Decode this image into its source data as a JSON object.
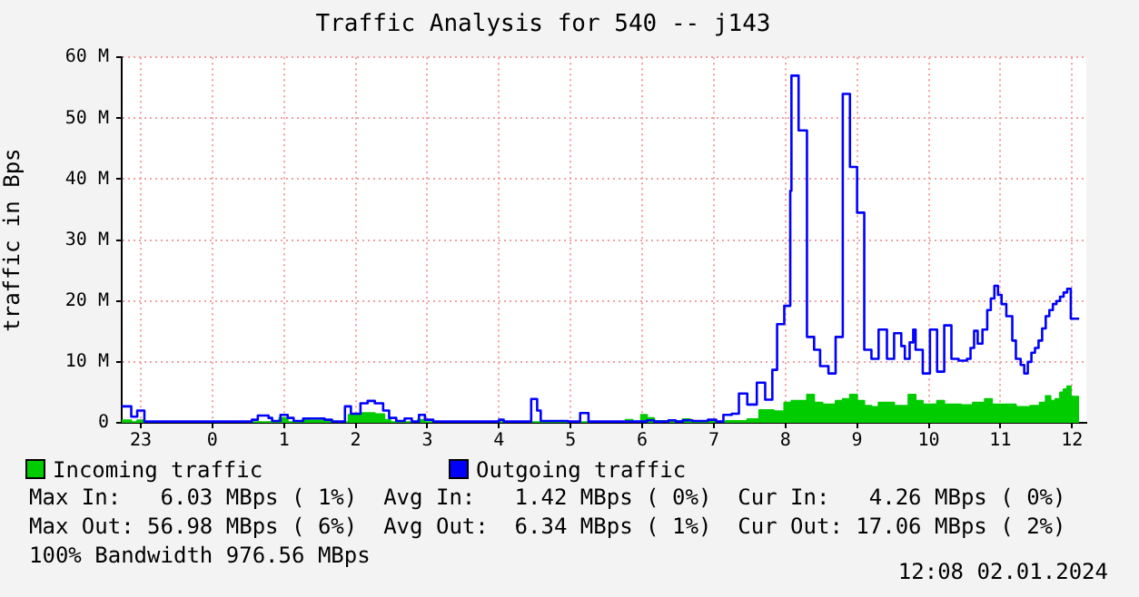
{
  "chart_data": {
    "type": "step",
    "title": "Traffic Analysis for 540 -- j143",
    "ylabel": "traffic in Bps",
    "xlim": [
      "2024-01-01T22:44",
      "2024-01-02T12:12"
    ],
    "xticks": [
      {
        "value": "2024-01-01T23:00",
        "label": "23"
      },
      {
        "value": "2024-01-02T00:00",
        "label": "0"
      },
      {
        "value": "2024-01-02T01:00",
        "label": "1"
      },
      {
        "value": "2024-01-02T02:00",
        "label": "2"
      },
      {
        "value": "2024-01-02T03:00",
        "label": "3"
      },
      {
        "value": "2024-01-02T04:00",
        "label": "4"
      },
      {
        "value": "2024-01-02T05:00",
        "label": "5"
      },
      {
        "value": "2024-01-02T06:00",
        "label": "6"
      },
      {
        "value": "2024-01-02T07:00",
        "label": "7"
      },
      {
        "value": "2024-01-02T08:00",
        "label": "8"
      },
      {
        "value": "2024-01-02T09:00",
        "label": "9"
      },
      {
        "value": "2024-01-02T10:00",
        "label": "10"
      },
      {
        "value": "2024-01-02T11:00",
        "label": "11"
      },
      {
        "value": "2024-01-02T12:00",
        "label": "12"
      }
    ],
    "ylim": [
      0,
      60
    ],
    "yticks": [
      0,
      {
        "value": 10,
        "label": "10 M"
      },
      {
        "value": 20,
        "label": "20 M"
      },
      {
        "value": 30,
        "label": "30 M"
      },
      {
        "value": 40,
        "label": "40 M"
      },
      {
        "value": 50,
        "label": "50 M"
      },
      {
        "value": 60,
        "label": "60 M"
      }
    ],
    "grid": true,
    "legend": "bottom",
    "series": [
      {
        "name": "Incoming traffic",
        "type": "area",
        "color": "#00cc00",
        "x": [
          "2024-01-01T22:44",
          "2024-01-01T22:52",
          "2024-01-01T22:57",
          "2024-01-01T23:03",
          "2024-01-02T00:56",
          "2024-01-02T01:03",
          "2024-01-02T01:16",
          "2024-01-02T01:21",
          "2024-01-02T01:41",
          "2024-01-02T01:54",
          "2024-01-02T02:04",
          "2024-01-02T02:16",
          "2024-01-02T02:24",
          "2024-01-02T02:29",
          "2024-01-02T02:52",
          "2024-01-02T02:58",
          "2024-01-02T05:46",
          "2024-01-02T05:52",
          "2024-01-02T05:59",
          "2024-01-02T06:04",
          "2024-01-02T06:10",
          "2024-01-02T06:34",
          "2024-01-02T06:40",
          "2024-01-02T06:55",
          "2024-01-02T07:10",
          "2024-01-02T07:28",
          "2024-01-02T07:38",
          "2024-01-02T07:50",
          "2024-01-02T07:59",
          "2024-01-02T08:05",
          "2024-01-02T08:18",
          "2024-01-02T08:24",
          "2024-01-02T08:31",
          "2024-01-02T08:42",
          "2024-01-02T08:48",
          "2024-01-02T08:54",
          "2024-01-02T09:00",
          "2024-01-02T09:06",
          "2024-01-02T09:12",
          "2024-01-02T09:18",
          "2024-01-02T09:31",
          "2024-01-02T09:43",
          "2024-01-02T09:49",
          "2024-01-02T09:55",
          "2024-01-02T10:07",
          "2024-01-02T10:13",
          "2024-01-02T10:27",
          "2024-01-02T10:37",
          "2024-01-02T10:47",
          "2024-01-02T10:53",
          "2024-01-02T11:13",
          "2024-01-02T11:25",
          "2024-01-02T11:33",
          "2024-01-02T11:38",
          "2024-01-02T11:42",
          "2024-01-02T11:46",
          "2024-01-02T11:50",
          "2024-01-02T11:53",
          "2024-01-02T11:56",
          "2024-01-02T11:59",
          "2024-01-02T12:06"
        ],
        "values": [
          0.4,
          0.1,
          0.4,
          0.1,
          0.8,
          0.1,
          0.7,
          0.4,
          0.1,
          1.3,
          1.6,
          1.4,
          0.5,
          0.1,
          0.5,
          0.1,
          0.5,
          0.2,
          1.3,
          0.8,
          0.3,
          0.6,
          0.3,
          0.2,
          0.3,
          0.6,
          2.1,
          1.9,
          3.3,
          3.6,
          4.6,
          3.3,
          3.0,
          3.6,
          3.9,
          4.6,
          3.6,
          2.8,
          2.6,
          3.3,
          2.8,
          4.6,
          3.6,
          3.0,
          3.6,
          3.0,
          2.9,
          3.3,
          3.9,
          3.0,
          2.6,
          2.8,
          3.3,
          4.4,
          3.6,
          3.9,
          5.0,
          5.5,
          6.0,
          4.3,
          4.3
        ]
      },
      {
        "name": "Outgoing traffic",
        "type": "step",
        "color": "#0000ff",
        "x": [
          "2024-01-01T22:44",
          "2024-01-01T22:52",
          "2024-01-01T22:57",
          "2024-01-01T23:03",
          "2024-01-02T00:33",
          "2024-01-02T00:38",
          "2024-01-02T00:47",
          "2024-01-02T00:50",
          "2024-01-02T00:57",
          "2024-01-02T01:03",
          "2024-01-02T01:08",
          "2024-01-02T01:16",
          "2024-01-02T01:34",
          "2024-01-02T01:40",
          "2024-01-02T01:51",
          "2024-01-02T01:56",
          "2024-01-02T02:04",
          "2024-01-02T02:10",
          "2024-01-02T02:16",
          "2024-01-02T02:23",
          "2024-01-02T02:28",
          "2024-01-02T02:34",
          "2024-01-02T02:41",
          "2024-01-02T02:47",
          "2024-01-02T02:53",
          "2024-01-02T02:58",
          "2024-01-02T03:05",
          "2024-01-02T04:00",
          "2024-01-02T04:04",
          "2024-01-02T04:27",
          "2024-01-02T04:32",
          "2024-01-02T04:35",
          "2024-01-02T04:58",
          "2024-01-02T05:08",
          "2024-01-02T05:15",
          "2024-01-02T06:04",
          "2024-01-02T06:10",
          "2024-01-02T06:22",
          "2024-01-02T06:28",
          "2024-01-02T06:34",
          "2024-01-02T06:42",
          "2024-01-02T06:55",
          "2024-01-02T07:02",
          "2024-01-02T07:08",
          "2024-01-02T07:15",
          "2024-01-02T07:21",
          "2024-01-02T07:28",
          "2024-01-02T07:36",
          "2024-01-02T07:43",
          "2024-01-02T07:49",
          "2024-01-02T07:53",
          "2024-01-02T07:59",
          "2024-01-02T08:04",
          "2024-01-02T08:05",
          "2024-01-02T08:11",
          "2024-01-02T08:18",
          "2024-01-02T08:24",
          "2024-01-02T08:29",
          "2024-01-02T08:36",
          "2024-01-02T08:42",
          "2024-01-02T08:48",
          "2024-01-02T08:54",
          "2024-01-02T09:00",
          "2024-01-02T09:06",
          "2024-01-02T09:12",
          "2024-01-02T09:18",
          "2024-01-02T09:25",
          "2024-01-02T09:31",
          "2024-01-02T09:37",
          "2024-01-02T09:40",
          "2024-01-02T09:44",
          "2024-01-02T09:47",
          "2024-01-02T09:49",
          "2024-01-02T09:55",
          "2024-01-02T10:01",
          "2024-01-02T10:07",
          "2024-01-02T10:13",
          "2024-01-02T10:19",
          "2024-01-02T10:25",
          "2024-01-02T10:32",
          "2024-01-02T10:35",
          "2024-01-02T10:38",
          "2024-01-02T10:41",
          "2024-01-02T10:45",
          "2024-01-02T10:49",
          "2024-01-02T10:52",
          "2024-01-02T10:55",
          "2024-01-02T10:58",
          "2024-01-02T11:01",
          "2024-01-02T11:05",
          "2024-01-02T11:10",
          "2024-01-02T11:13",
          "2024-01-02T11:17",
          "2024-01-02T11:20",
          "2024-01-02T11:23",
          "2024-01-02T11:26",
          "2024-01-02T11:29",
          "2024-01-02T11:32",
          "2024-01-02T11:35",
          "2024-01-02T11:38",
          "2024-01-02T11:41",
          "2024-01-02T11:44",
          "2024-01-02T11:47",
          "2024-01-02T11:50",
          "2024-01-02T11:53",
          "2024-01-02T11:56",
          "2024-01-02T11:59",
          "2024-01-02T12:06"
        ],
        "values": [
          2.7,
          1.0,
          2.0,
          0.2,
          0.5,
          1.2,
          0.8,
          0.3,
          1.3,
          0.8,
          0.3,
          0.7,
          0.5,
          0.2,
          2.7,
          1.5,
          3.2,
          3.6,
          3.2,
          2.0,
          0.8,
          0.3,
          0.7,
          0.2,
          1.3,
          0.5,
          0.2,
          0.5,
          0.2,
          3.9,
          2.0,
          0.3,
          0.2,
          1.6,
          0.2,
          0.4,
          0.2,
          0.4,
          0.2,
          0.4,
          0.3,
          0.5,
          0.2,
          1.3,
          1.5,
          4.8,
          3.0,
          6.6,
          3.8,
          8.7,
          16.2,
          19.2,
          38.1,
          57,
          48,
          14.1,
          12.0,
          9.3,
          8.1,
          14.1,
          54,
          42,
          34.5,
          12.0,
          10.5,
          15.3,
          10.5,
          14.7,
          12.6,
          10.5,
          13.2,
          15.3,
          12.0,
          8.1,
          15.3,
          8.4,
          16.0,
          10.5,
          10.2,
          10.5,
          12.3,
          15.1,
          13.0,
          15.3,
          18.5,
          20.4,
          22.5,
          21.0,
          19.5,
          17.5,
          13.5,
          10.5,
          9.5,
          8.1,
          10.0,
          11.5,
          12.3,
          13.5,
          15.5,
          17.5,
          18.5,
          19.5,
          20.0,
          20.7,
          21.4,
          22.0,
          17.1,
          17.1
        ]
      }
    ],
    "annotations": [
      "Max In:   6.03 MBps ( 1%)  Avg In:   1.42 MBps ( 0%)  Cur In:   4.26 MBps ( 0%)",
      "Max Out: 56.98 MBps ( 6%)  Avg Out:  6.34 MBps ( 1%)  Cur Out: 17.06 MBps ( 2%)",
      "100% Bandwidth 976.56 MBps",
      "12:08 02.01.2024"
    ]
  }
}
